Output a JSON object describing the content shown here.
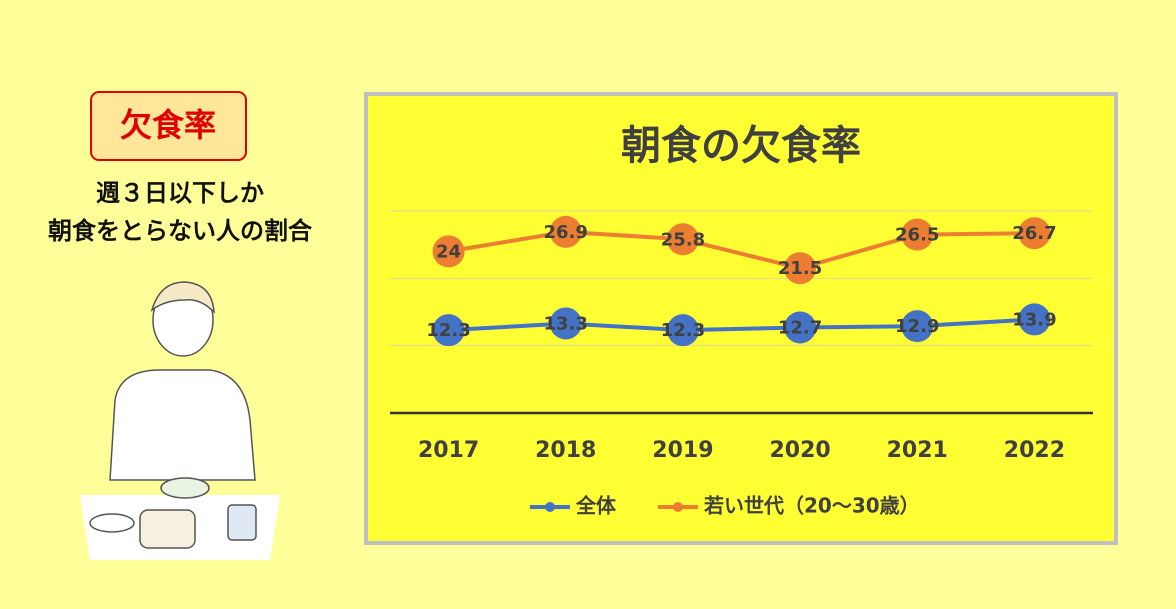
{
  "sidebar": {
    "badge": "欠食率",
    "caption": [
      "週３日以下しか",
      "朝食をとらない人の割合"
    ]
  },
  "chart_data": {
    "type": "line",
    "title": "朝食の欠食率",
    "categories": [
      "2017",
      "2018",
      "2019",
      "2020",
      "2021",
      "2022"
    ],
    "series": [
      {
        "name": "全体",
        "color": "#4472c4",
        "values": [
          12.3,
          13.3,
          12.3,
          12.7,
          12.9,
          13.9
        ]
      },
      {
        "name": "若い世代（20～30歳）",
        "color": "#ed7d31",
        "values": [
          24,
          26.9,
          25.8,
          21.5,
          26.5,
          26.7
        ]
      }
    ],
    "ylim": [
      0,
      30
    ],
    "yticks": [
      0,
      10,
      20,
      30
    ],
    "grid": true,
    "legend": "bottom"
  }
}
